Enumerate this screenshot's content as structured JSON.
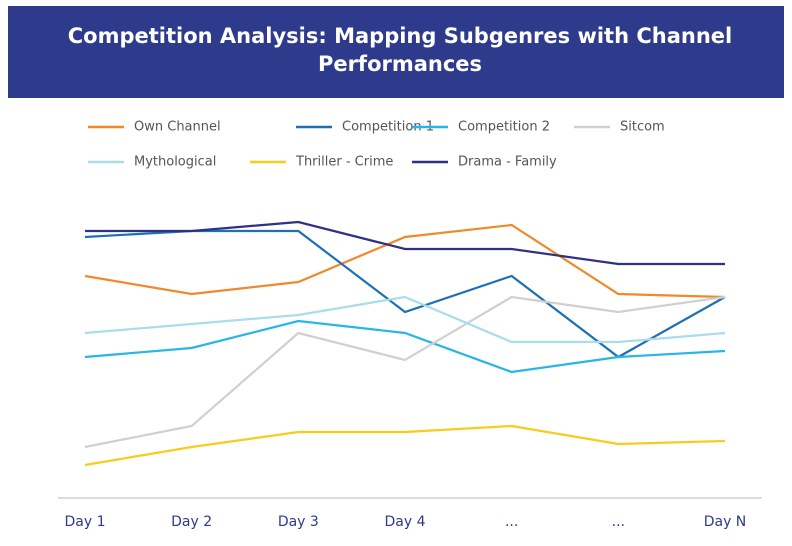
{
  "chart_data": {
    "type": "line",
    "title": "Competition Analysis: Mapping Subgenres with Channel Performances",
    "categories": [
      "Day 1",
      "Day 2",
      "Day 3",
      "Day 4",
      "...",
      "...",
      "Day N"
    ],
    "ylim": [
      0,
      100
    ],
    "series": [
      {
        "name": "Own Channel",
        "color": "#f0892a",
        "values": [
          74,
          68,
          72,
          87,
          91,
          68,
          67
        ]
      },
      {
        "name": "Competition 1",
        "color": "#1f6fb5",
        "values": [
          87,
          89,
          89,
          62,
          74,
          47,
          67
        ]
      },
      {
        "name": "Competition 2",
        "color": "#29b5e8",
        "values": [
          47,
          50,
          59,
          55,
          42,
          47,
          49
        ]
      },
      {
        "name": "Sitcom",
        "color": "#d0d0d0",
        "values": [
          17,
          24,
          55,
          46,
          67,
          62,
          67
        ]
      },
      {
        "name": "Mythological",
        "color": "#a8dde9",
        "values": [
          55,
          58,
          61,
          67,
          52,
          52,
          55
        ]
      },
      {
        "name": "Thriller - Crime",
        "color": "#f7cc1c",
        "values": [
          11,
          17,
          22,
          22,
          24,
          18,
          19
        ]
      },
      {
        "name": "Drama - Family",
        "color": "#2e3184",
        "values": [
          89,
          89,
          92,
          83,
          83,
          78,
          78
        ]
      }
    ]
  }
}
